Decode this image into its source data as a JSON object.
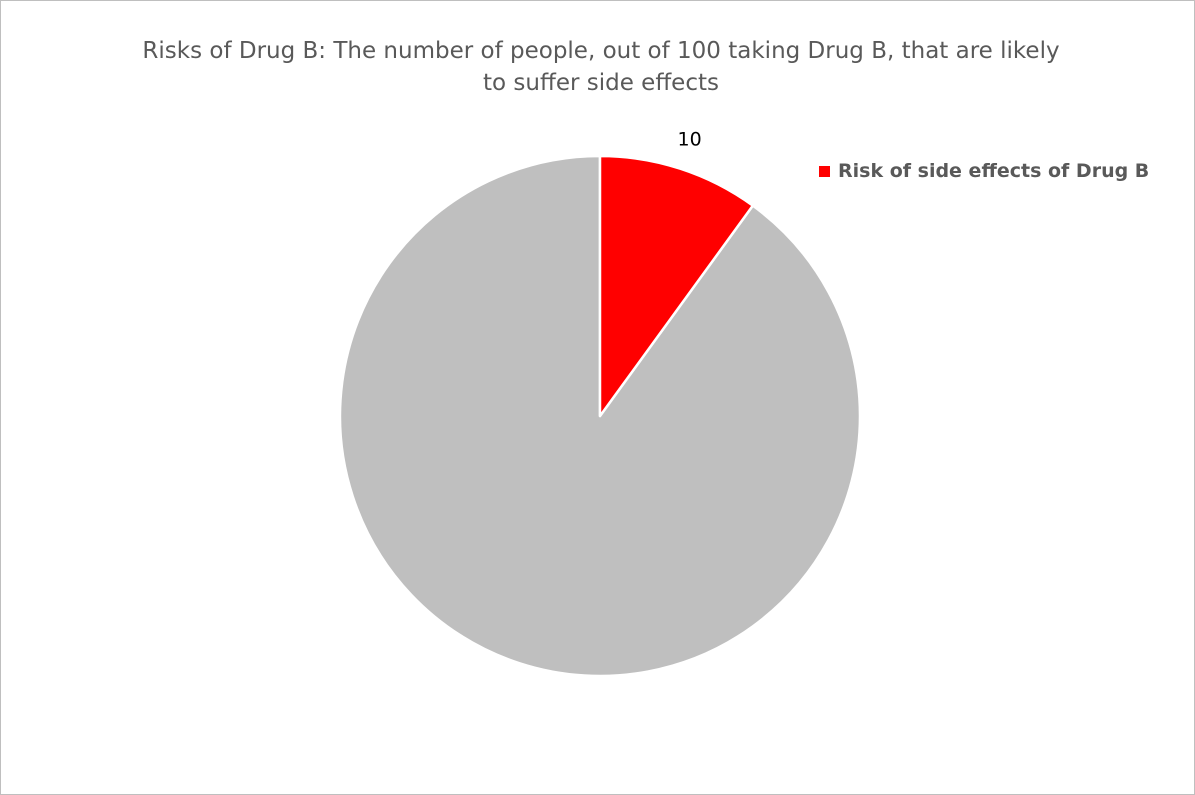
{
  "chart_data": {
    "type": "pie",
    "title": "Risks of Drug B: The number of people, out of 100 taking Drug B, that are likely\nto suffer side effects",
    "slices": [
      {
        "label": "Risk of side effects of Drug B",
        "value": 10,
        "data_label": "10",
        "color": "#ff0000",
        "show_in_legend": true
      },
      {
        "label": "",
        "value": 90,
        "data_label": "",
        "color": "#bfbfbf",
        "show_in_legend": false
      }
    ],
    "start_angle_deg": 0,
    "direction": "clockwise",
    "legend": {
      "placement": "right",
      "label": "Risk of side effects of Drug B",
      "color": "#ff0000"
    },
    "colors": {
      "slice_border": "#ffffff",
      "title_text": "#595959",
      "legend_text": "#595959",
      "data_label_text": "#000000",
      "frame_border": "#bfbfbf"
    }
  }
}
